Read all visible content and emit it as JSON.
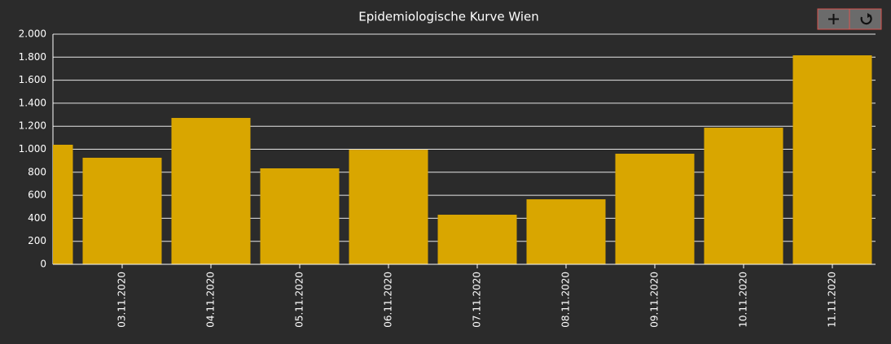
{
  "chart_data": {
    "type": "bar",
    "title": "Epidemiologische Kurve Wien",
    "categories": [
      null,
      "03.11.2020",
      "04.11.2020",
      "05.11.2020",
      "06.11.2020",
      "07.11.2020",
      "08.11.2020",
      "09.11.2020",
      "10.11.2020",
      "11.11.2020"
    ],
    "values": [
      1039,
      926,
      1272,
      834,
      996,
      431,
      565,
      961,
      1187,
      1816
    ],
    "color": "#d9a600",
    "ylim": [
      0,
      2000
    ],
    "yticks": [
      0,
      200,
      400,
      600,
      800,
      {
        "value": 1000,
        "label": "1.000"
      },
      {
        "value": 1200,
        "label": "1.200"
      },
      {
        "value": 1400,
        "label": "1.400"
      },
      {
        "value": 1600,
        "label": "1.600"
      },
      {
        "value": 1800,
        "label": "1.800"
      },
      {
        "value": 2000,
        "label": "2.000"
      }
    ],
    "grid": true
  }
}
